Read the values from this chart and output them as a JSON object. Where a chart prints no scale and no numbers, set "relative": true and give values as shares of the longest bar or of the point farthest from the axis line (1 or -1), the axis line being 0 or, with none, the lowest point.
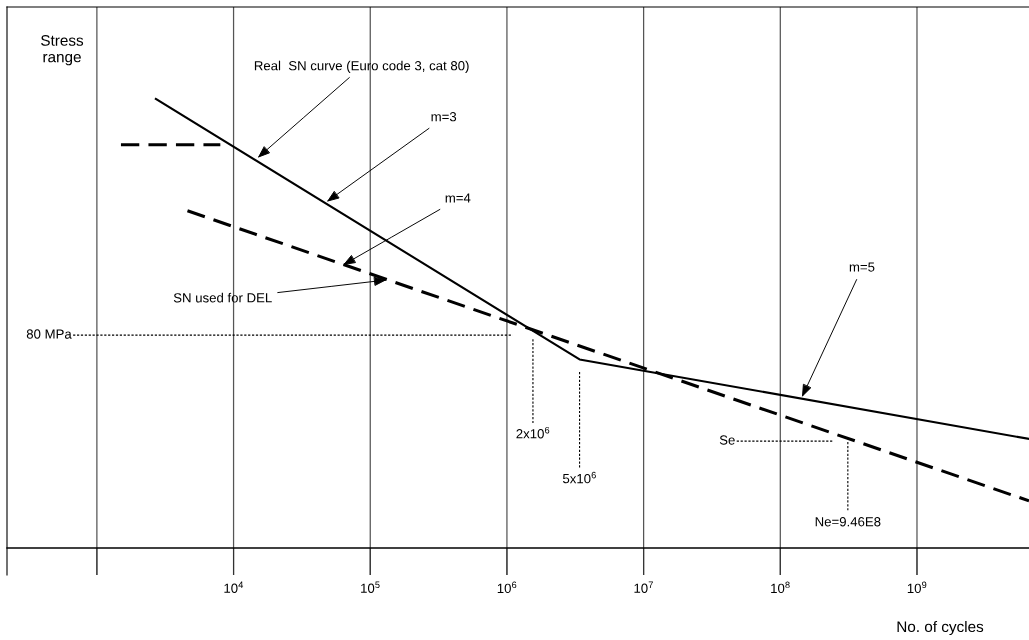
{
  "chart_data": {
    "type": "line",
    "relative": true,
    "log": "x",
    "grid": "x",
    "xlabel": "No. of cycles",
    "ylabel": "Stress\nrange",
    "xlim": [
      220,
      6600000000
    ],
    "xticks": [
      {
        "value": 1000,
        "label": null
      },
      {
        "value": 10000,
        "label": "10$^{4}$"
      },
      {
        "value": 100000,
        "label": "10$^{5}$"
      },
      {
        "value": 1000000,
        "label": "10$^{6}$"
      },
      {
        "value": 10000000,
        "label": "10$^{7}$"
      },
      {
        "value": 100000000,
        "label": "10$^{8}$"
      },
      {
        "value": 1000000000,
        "label": "10$^{9}$"
      }
    ],
    "series": [
      {
        "color": "#000000",
        "line_style": "solid",
        "x": [
          2700,
          3400000,
          6600000000
        ],
        "values": [
          1,
          0.42,
          0.243
        ]
      },
      {
        "color": "#000000",
        "line_style": "dashed",
        "x": [
          4600,
          6600000000
        ],
        "values": [
          0.751,
          0.105
        ]
      },
      {
        "color": "#000000",
        "line_style": "dashed",
        "x": [
          1500,
          8000
        ],
        "values": [
          0.898,
          0.898
        ]
      },
      {
        "name": "80 MPa",
        "color": "#000000",
        "line_style": "dotted",
        "x": [
          670,
          1100000
        ],
        "values": [
          0.474,
          0.474
        ]
      },
      {
        "name": "2x10$^{6}$",
        "color": "#000000",
        "line_style": "dotted",
        "x": [
          1550000,
          1550000
        ],
        "values": [
          0.465,
          0.278
        ]
      },
      {
        "name": "5x10$^{6}$",
        "color": "#000000",
        "line_style": "dotted",
        "x": [
          3400000,
          3400000
        ],
        "values": [
          0.392,
          0.178
        ]
      },
      {
        "name": "Se",
        "color": "#000000",
        "line_style": "dotted",
        "x": [
          48000000,
          240000000
        ],
        "values": [
          0.238,
          0.238
        ]
      },
      {
        "name": "Ne=9.46E8",
        "color": "#000000",
        "line_style": "dotted",
        "x": [
          312000000,
          312000000
        ],
        "values": [
          0.236,
          0.082
        ]
      }
    ],
    "annotations": [
      {
        "text": "Real  SN curve (Euro code 3, cat 80)",
        "x": 15000,
        "y": 0.869
      },
      {
        "text": "m=3",
        "x": 48000,
        "y": 0.771
      },
      {
        "text": "m=4",
        "x": 63000,
        "y": 0.63
      },
      {
        "text": "SN used for DEL",
        "x": 132000,
        "y": 0.597
      },
      {
        "text": "m=5",
        "x": 144000000,
        "y": 0.336
      }
    ]
  }
}
